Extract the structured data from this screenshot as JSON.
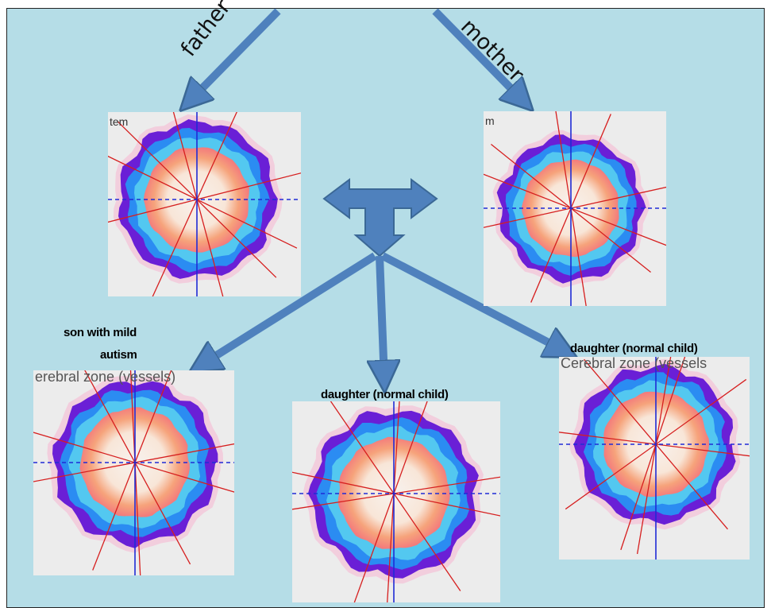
{
  "labels": {
    "father": "father",
    "mother": "mother",
    "son": "son with mild autism",
    "son_line1": "son with mild",
    "son_line2": "autism",
    "daughter_center": "daughter (normal child)",
    "daughter_right": "daughter (normal child)"
  },
  "panels": {
    "father": {
      "corner_text": "tem"
    },
    "mother": {
      "corner_text": "m"
    },
    "son": {
      "corner_text": "erebral zone (vessels)"
    },
    "daughter_center": {
      "corner_text": ""
    },
    "daughter_right": {
      "corner_text": "Cerebral zone (vessels"
    }
  },
  "colors": {
    "background": "#b5dde7",
    "arrow": "#4f81bd",
    "arrow_outline": "#3b6896",
    "panel_bg": "#ececec",
    "ring_outer": "#6a1fd6",
    "ring_mid": "#2b8cf2",
    "ring_inner": "#53c8f0",
    "core_warm": "#f6a37b",
    "crosshair_blue": "#1f2bd6",
    "crosshair_red": "#d61f1f"
  }
}
